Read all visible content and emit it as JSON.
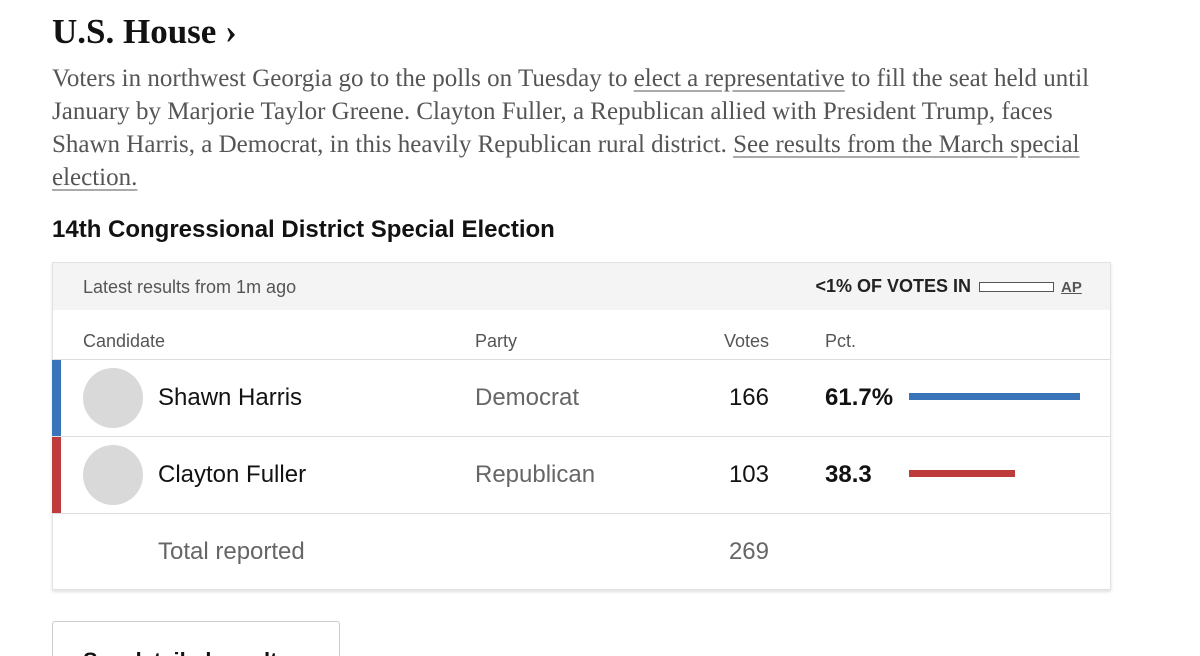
{
  "header": {
    "title": "U.S. House ›"
  },
  "intro": [
    {
      "text": "Voters in northwest Georgia go to the polls on Tuesday to "
    },
    {
      "text": "elect a representative",
      "link": true
    },
    {
      "text": " to fill the seat held until January by Marjorie Taylor Greene. Clayton Fuller, a Republican allied with President Trump, faces Shawn Harris, a Democrat, in this heavily Republican rural district. "
    },
    {
      "text": "See results from the March special election.",
      "link": true
    }
  ],
  "race": {
    "title": "14th Congressional District Special Election",
    "status": "Latest results from 1m ago",
    "votes_in": "<1% OF VOTES IN",
    "source": "AP",
    "columns": [
      "Candidate",
      "Party",
      "Votes",
      "Pct."
    ],
    "rows": [
      {
        "name": "Shawn Harris",
        "party": "Democrat",
        "votes": 166,
        "pct": 61.7,
        "pct_label": "61.7%",
        "color": "#3a74b8"
      },
      {
        "name": "Clayton Fuller",
        "party": "Republican",
        "votes": 103,
        "pct": 38.3,
        "color": "#bd3b3b"
      }
    ],
    "total": {
      "label": "Total reported",
      "votes": 269
    }
  },
  "button": "See detailed results"
}
